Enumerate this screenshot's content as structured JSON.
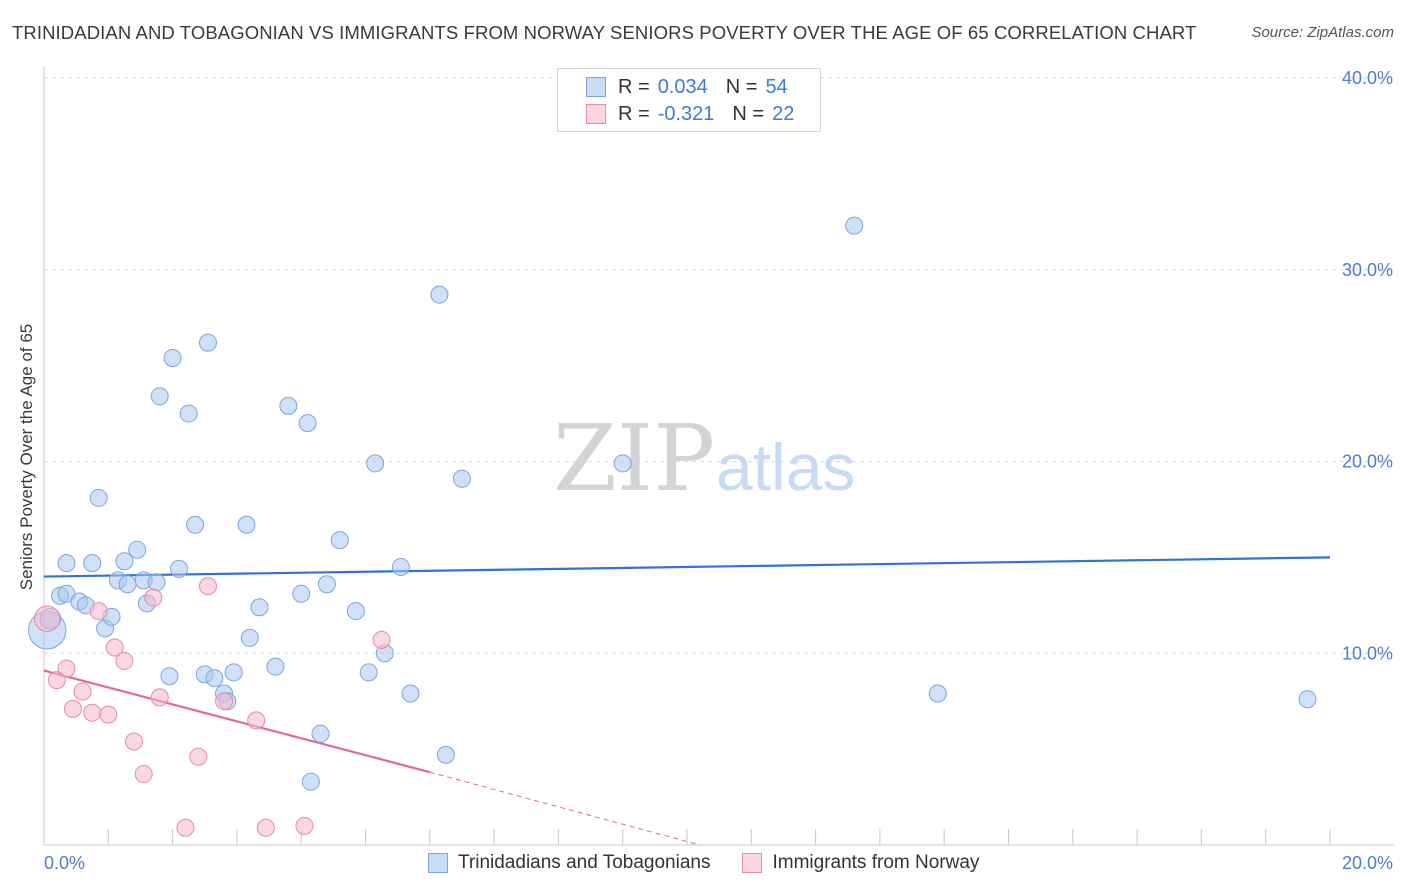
{
  "title": "TRINIDADIAN AND TOBAGONIAN VS IMMIGRANTS FROM NORWAY SENIORS POVERTY OVER THE AGE OF 65 CORRELATION CHART",
  "source": "Source: ZipAtlas.com",
  "watermark": {
    "zip": "ZIP",
    "atlas": "atlas"
  },
  "legend": {
    "rows": [
      {
        "r_label": "R =",
        "r_value": "0.034",
        "n_label": "N =",
        "n_value": "54",
        "color": "#a9c8f0"
      },
      {
        "r_label": "R =",
        "r_value": "-0.321",
        "n_label": "N =",
        "n_value": "22",
        "color": "#f6b8cb"
      }
    ]
  },
  "bottom_legend": {
    "items": [
      {
        "label": "Trinidadians and Tobagonians",
        "color": "#a9c8f0"
      },
      {
        "label": "Immigrants from Norway",
        "color": "#f6b8cb"
      }
    ]
  },
  "chart_data": {
    "type": "scatter",
    "ylabel": "Seniors Poverty Over the Age of 65",
    "xlim": [
      0,
      20
    ],
    "ylim": [
      0,
      40
    ],
    "x_tick_labels": [
      {
        "value": 0,
        "label": "0.0%"
      },
      {
        "value": 20,
        "label": "20.0%"
      }
    ],
    "y_tick_labels": [
      {
        "value": 10,
        "label": "10.0%"
      },
      {
        "value": 20,
        "label": "20.0%"
      },
      {
        "value": 30,
        "label": "30.0%"
      },
      {
        "value": 40,
        "label": "40.0%"
      }
    ],
    "grid": "dashed horizontal",
    "series": [
      {
        "name": "Trinidadians and Tobagonians",
        "color": "#a9c8f0",
        "edge": "#7aa6e0",
        "trend": {
          "x": [
            0,
            20
          ],
          "y": [
            14.0,
            15.0
          ],
          "color": "#2f73d4"
        },
        "points": [
          [
            0.05,
            11.2,
            2.2
          ],
          [
            0.1,
            11.8,
            1.2
          ],
          [
            0.25,
            13.0,
            1
          ],
          [
            0.35,
            14.7,
            1
          ],
          [
            0.35,
            13.1,
            1
          ],
          [
            0.55,
            12.7,
            1
          ],
          [
            0.65,
            12.5,
            1
          ],
          [
            0.75,
            14.7,
            1
          ],
          [
            0.85,
            18.1,
            1
          ],
          [
            0.95,
            11.3,
            1
          ],
          [
            1.05,
            11.9,
            1
          ],
          [
            1.15,
            13.8,
            1
          ],
          [
            1.25,
            14.8,
            1
          ],
          [
            1.3,
            13.6,
            1
          ],
          [
            1.45,
            15.4,
            1
          ],
          [
            1.55,
            13.8,
            1
          ],
          [
            1.6,
            12.6,
            1
          ],
          [
            1.75,
            13.7,
            1
          ],
          [
            1.8,
            23.4,
            1
          ],
          [
            1.95,
            8.8,
            1
          ],
          [
            2.0,
            25.4,
            1
          ],
          [
            2.1,
            14.4,
            1
          ],
          [
            2.25,
            22.5,
            1
          ],
          [
            2.35,
            16.7,
            1
          ],
          [
            2.5,
            8.9,
            1
          ],
          [
            2.55,
            26.2,
            1
          ],
          [
            2.65,
            8.7,
            1
          ],
          [
            2.8,
            7.9,
            1
          ],
          [
            2.85,
            7.5,
            1
          ],
          [
            2.95,
            9.0,
            1
          ],
          [
            3.15,
            16.7,
            1
          ],
          [
            3.2,
            10.8,
            1
          ],
          [
            3.35,
            12.4,
            1
          ],
          [
            3.6,
            9.3,
            1
          ],
          [
            3.8,
            22.9,
            1
          ],
          [
            4.0,
            13.1,
            1
          ],
          [
            4.1,
            22.0,
            1
          ],
          [
            4.15,
            3.3,
            1
          ],
          [
            4.3,
            5.8,
            1
          ],
          [
            4.4,
            13.6,
            1
          ],
          [
            4.6,
            15.9,
            1
          ],
          [
            4.85,
            12.2,
            1
          ],
          [
            5.05,
            9.0,
            1
          ],
          [
            5.15,
            19.9,
            1
          ],
          [
            5.3,
            10.0,
            1
          ],
          [
            5.55,
            14.5,
            1
          ],
          [
            5.7,
            7.9,
            1
          ],
          [
            6.15,
            28.7,
            1
          ],
          [
            6.25,
            4.7,
            1
          ],
          [
            6.5,
            19.1,
            1
          ],
          [
            9.0,
            19.9,
            1
          ],
          [
            12.6,
            32.3,
            1
          ],
          [
            13.9,
            7.9,
            1
          ],
          [
            19.65,
            7.6,
            1
          ]
        ]
      },
      {
        "name": "Immigrants from Norway",
        "color": "#f6b8cb",
        "edge": "#e98aa9",
        "trend": {
          "x": [
            0,
            6.0
          ],
          "y": [
            9.1,
            3.8
          ],
          "dash_x": [
            6.0,
            10.2
          ],
          "dash_y": [
            3.8,
            0.0
          ],
          "color": "#e06a93"
        },
        "points": [
          [
            0.05,
            11.8,
            1.5
          ],
          [
            0.2,
            8.6,
            1
          ],
          [
            0.35,
            9.2,
            1
          ],
          [
            0.45,
            7.1,
            1
          ],
          [
            0.6,
            8.0,
            1
          ],
          [
            0.75,
            6.9,
            1
          ],
          [
            0.85,
            12.2,
            1
          ],
          [
            1.0,
            6.8,
            1
          ],
          [
            1.1,
            10.3,
            1
          ],
          [
            1.25,
            9.6,
            1
          ],
          [
            1.4,
            5.4,
            1
          ],
          [
            1.55,
            3.7,
            1
          ],
          [
            1.7,
            12.9,
            1
          ],
          [
            1.8,
            7.7,
            1
          ],
          [
            2.2,
            0.9,
            1
          ],
          [
            2.4,
            4.6,
            1
          ],
          [
            2.55,
            13.5,
            1
          ],
          [
            2.8,
            7.5,
            1
          ],
          [
            3.3,
            6.5,
            1
          ],
          [
            3.45,
            0.9,
            1
          ],
          [
            4.05,
            1.0,
            1
          ],
          [
            5.25,
            10.7,
            1
          ]
        ]
      }
    ]
  }
}
